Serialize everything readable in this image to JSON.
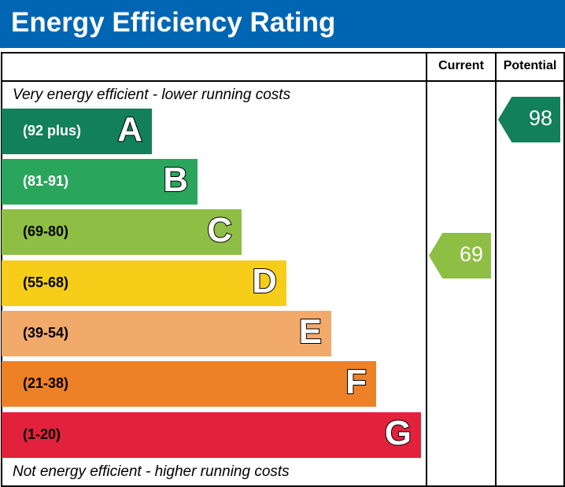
{
  "title": "Energy Efficiency Rating",
  "columns": {
    "current": "Current",
    "potential": "Potential"
  },
  "top_note": "Very energy efficient - lower running costs",
  "bottom_note": "Not energy efficient - higher running costs",
  "chart_data": {
    "type": "bar",
    "bands": [
      {
        "letter": "A",
        "range": "(92 plus)",
        "color": "#12805a",
        "text_color": "#ffffff"
      },
      {
        "letter": "B",
        "range": "(81-91)",
        "color": "#2aa65c",
        "text_color": "#ffffff"
      },
      {
        "letter": "C",
        "range": "(69-80)",
        "color": "#8fbe45",
        "text_color": "#000000"
      },
      {
        "letter": "D",
        "range": "(55-68)",
        "color": "#f6cd19",
        "text_color": "#000000"
      },
      {
        "letter": "E",
        "range": "(39-54)",
        "color": "#f2aa6b",
        "text_color": "#000000"
      },
      {
        "letter": "F",
        "range": "(21-38)",
        "color": "#ed8128",
        "text_color": "#000000"
      },
      {
        "letter": "G",
        "range": "(1-20)",
        "color": "#e2223d",
        "text_color": "#000000"
      }
    ],
    "current": {
      "value": "69",
      "band": "C"
    },
    "potential": {
      "value": "98",
      "band": "A"
    }
  }
}
